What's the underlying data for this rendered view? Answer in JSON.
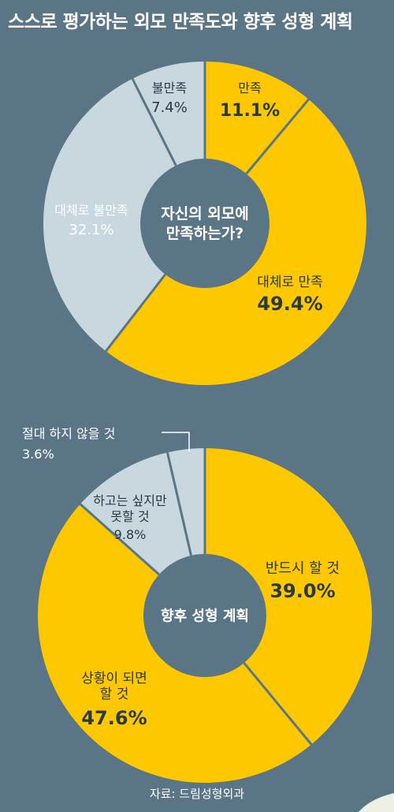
{
  "title": "스스로 평가하는 외모 만족도와 향후 성형 계획",
  "source": "자료: 드림성형외과",
  "colors": {
    "background": "#5a7586",
    "gold": "#fdc800",
    "gray": "#c9d8de",
    "hole": "#5a7586",
    "text_dark": "#2a3a45",
    "white": "#ffffff"
  },
  "chart_data": [
    {
      "type": "pie",
      "title": "자신의 외모에 만족하는가?",
      "center_lines": [
        "자신의 외모에",
        "만족하는가?"
      ],
      "slices": [
        {
          "label_lines": [
            "만족"
          ],
          "value": 11.1,
          "value_text": "11.1%",
          "color": "gold"
        },
        {
          "label_lines": [
            "대체로 만족"
          ],
          "value": 49.4,
          "value_text": "49.4%",
          "color": "gold"
        },
        {
          "label_lines": [
            "대체로 불만족"
          ],
          "value": 32.1,
          "value_text": "32.1%",
          "color": "gray"
        },
        {
          "label_lines": [
            "불만족"
          ],
          "value": 7.4,
          "value_text": "7.4%",
          "color": "gray"
        }
      ]
    },
    {
      "type": "pie",
      "title": "향후 성형 계획",
      "center_lines": [
        "향후 성형 계획"
      ],
      "slices": [
        {
          "label_lines": [
            "반드시 할 것"
          ],
          "value": 39.0,
          "value_text": "39.0%",
          "color": "gold"
        },
        {
          "label_lines": [
            "상황이 되면",
            "할 것"
          ],
          "value": 47.6,
          "value_text": "47.6%",
          "color": "gold"
        },
        {
          "label_lines": [
            "하고는 싶지만",
            "못할 것"
          ],
          "value": 9.8,
          "value_text": "9.8%",
          "color": "gray"
        },
        {
          "label_lines": [
            "절대 하지 않을 것"
          ],
          "value": 3.6,
          "value_text": "3.6%",
          "color": "gray"
        }
      ]
    }
  ]
}
